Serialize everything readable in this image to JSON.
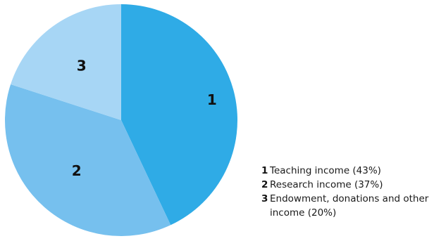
{
  "chart_data": {
    "type": "pie",
    "slices": [
      {
        "number": "1",
        "label": "Teaching income (43%)",
        "value": 43,
        "color": "#2fabe6"
      },
      {
        "number": "2",
        "label": "Research income (37%)",
        "value": 37,
        "color": "#76c0ee"
      },
      {
        "number": "3",
        "label": "Endowment, donations and other income (20%)",
        "value": 20,
        "color": "#a7d6f5"
      }
    ]
  }
}
